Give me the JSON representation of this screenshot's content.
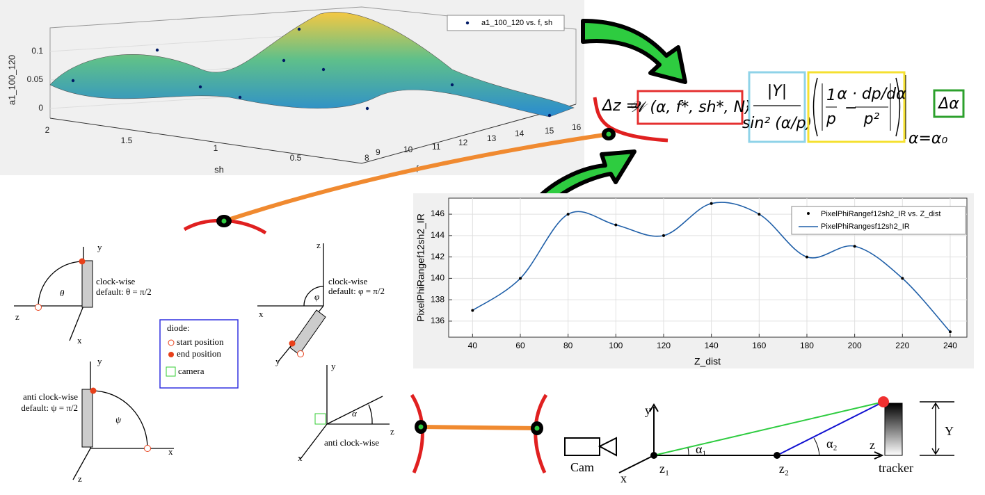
{
  "surface_plot": {
    "zlabel": "a1_100_120",
    "zticks": [
      "0",
      "0.05",
      "0.1"
    ],
    "xlabel": "sh",
    "xticks": [
      "2",
      "1.5",
      "1",
      "0.5"
    ],
    "ylabel": "f",
    "yticks": [
      "8",
      "9",
      "10",
      "11",
      "12",
      "13",
      "14",
      "15",
      "16"
    ],
    "legend": "a1_100_120 vs. f, sh"
  },
  "formula": {
    "lhs": "Δz =",
    "w_term": "𝒲 (α, f*, sh*, N)",
    "dot": "·",
    "numerator": "|Y|",
    "denominator": "sin² (α/p)",
    "one": "1",
    "p": "p",
    "minus": "−",
    "alpha_dp": "α · dp/dα",
    "p2": "p²",
    "eval": "α=α₀",
    "delta_alpha": "Δα"
  },
  "line_plot": {
    "xlabel": "Z_dist",
    "ylabel": "PixelPhiRangef12sh2_IR",
    "x": [
      40,
      60,
      80,
      100,
      120,
      140,
      160,
      180,
      200,
      220,
      240
    ],
    "values": [
      137,
      140,
      146,
      145,
      144,
      147,
      146,
      142,
      143,
      140,
      135
    ],
    "xlim": [
      30,
      247
    ],
    "ylim": [
      134.5,
      147.5
    ],
    "xticks": [
      40,
      60,
      80,
      100,
      120,
      140,
      160,
      180,
      200,
      220,
      240
    ],
    "yticks": [
      136,
      138,
      140,
      142,
      144,
      146
    ],
    "grid": true,
    "series_names": [
      "PixelPhiRangef12sh2_IR vs. Z_dist",
      "PixelPhiRangesf12sh2_IR"
    ],
    "color": "#1f5fa8"
  },
  "frames": {
    "theta": {
      "y": "y",
      "z": "z",
      "x": "x",
      "angle": "θ",
      "direction": "clock-wise",
      "default": "default: θ = π/2"
    },
    "phi": {
      "z": "z",
      "x": "x",
      "y": "y",
      "angle": "φ",
      "direction": "clock-wise",
      "default": "default: φ = π/2"
    },
    "psi": {
      "y": "y",
      "x": "x",
      "z": "z",
      "angle": "ψ",
      "direction": "anti clock-wise",
      "default": "default: ψ = π/2"
    },
    "alpha": {
      "y": "y",
      "z": "z",
      "x": "x",
      "angle": "α",
      "direction": "anti clock-wise"
    },
    "legend": {
      "title": "diode:",
      "start": "start position",
      "end": "end position",
      "camera": "camera"
    }
  },
  "setup": {
    "cam": "Cam",
    "y": "y",
    "x": "x",
    "z": "z",
    "z1": "z₁",
    "z2": "z₂",
    "alpha1": "α₁",
    "alpha2": "α₂",
    "tracker": "tracker",
    "height": "Y"
  }
}
